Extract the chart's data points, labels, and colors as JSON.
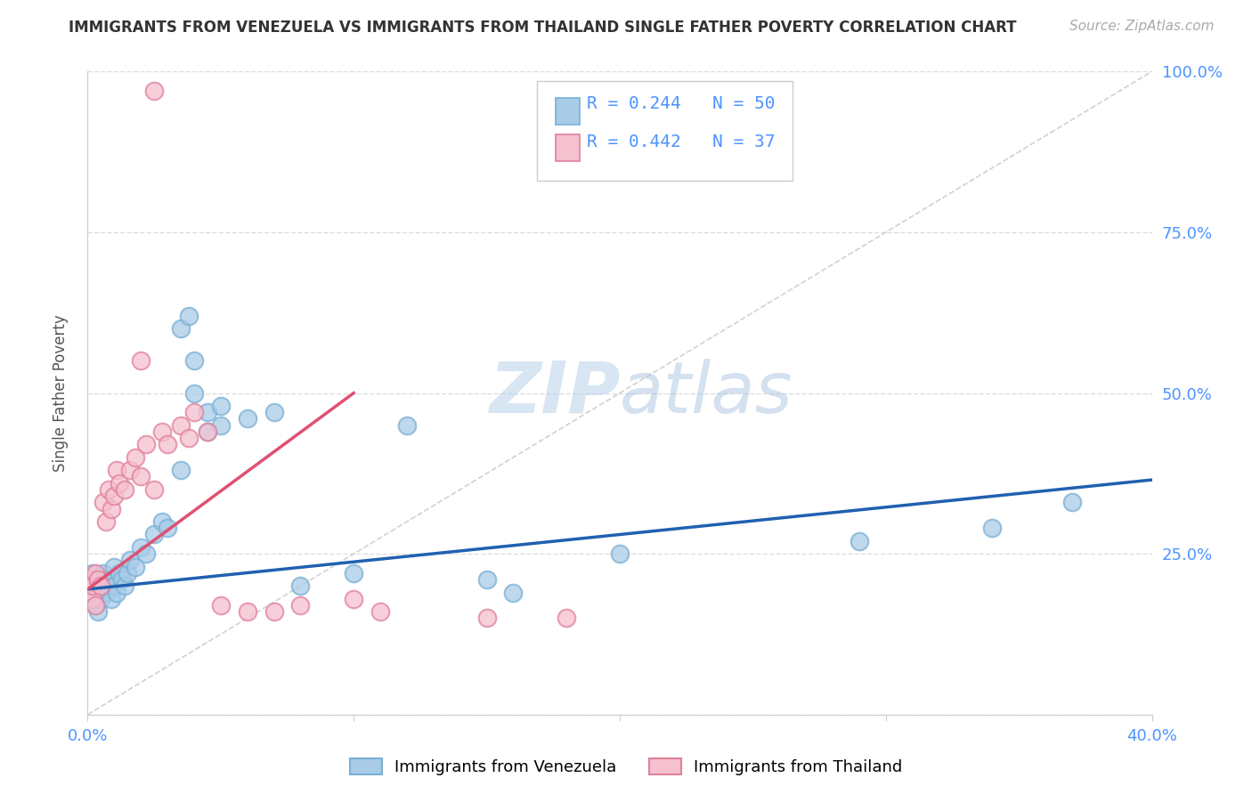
{
  "title": "IMMIGRANTS FROM VENEZUELA VS IMMIGRANTS FROM THAILAND SINGLE FATHER POVERTY CORRELATION CHART",
  "source": "Source: ZipAtlas.com",
  "ylabel": "Single Father Poverty",
  "legend_r_blue": "R = 0.244",
  "legend_n_blue": "N = 50",
  "legend_r_pink": "R = 0.442",
  "legend_n_pink": "N = 37",
  "blue_face": "#a8cce8",
  "blue_edge": "#7aafd4",
  "pink_face": "#f5c0d0",
  "pink_edge": "#e0809a",
  "blue_line": "#2060b0",
  "pink_line": "#e05070",
  "ref_line": "#cccccc",
  "grid_color": "#dddddd",
  "axis_tick_color": "#4d94ff",
  "watermark_zip": "#c8ddf0",
  "watermark_atlas": "#a8c8e8",
  "xlim": [
    0.0,
    0.4
  ],
  "ylim": [
    0.0,
    1.0
  ],
  "ven_x": [
    0.001,
    0.001,
    0.002,
    0.002,
    0.002,
    0.003,
    0.003,
    0.004,
    0.004,
    0.005,
    0.005,
    0.006,
    0.006,
    0.007,
    0.008,
    0.009,
    0.01,
    0.01,
    0.011,
    0.012,
    0.013,
    0.014,
    0.015,
    0.016,
    0.018,
    0.02,
    0.022,
    0.025,
    0.028,
    0.03,
    0.035,
    0.038,
    0.04,
    0.045,
    0.05,
    0.06,
    0.07,
    0.08,
    0.1,
    0.12,
    0.035,
    0.04,
    0.045,
    0.05,
    0.15,
    0.16,
    0.2,
    0.29,
    0.34,
    0.37
  ],
  "ven_y": [
    0.19,
    0.21,
    0.18,
    0.2,
    0.22,
    0.17,
    0.19,
    0.2,
    0.16,
    0.18,
    0.21,
    0.2,
    0.22,
    0.19,
    0.21,
    0.18,
    0.2,
    0.23,
    0.19,
    0.22,
    0.21,
    0.2,
    0.22,
    0.24,
    0.23,
    0.26,
    0.25,
    0.28,
    0.3,
    0.29,
    0.6,
    0.62,
    0.55,
    0.47,
    0.48,
    0.46,
    0.47,
    0.2,
    0.22,
    0.45,
    0.38,
    0.5,
    0.44,
    0.45,
    0.21,
    0.19,
    0.25,
    0.27,
    0.29,
    0.33
  ],
  "thai_x": [
    0.001,
    0.001,
    0.002,
    0.002,
    0.003,
    0.003,
    0.004,
    0.005,
    0.006,
    0.007,
    0.008,
    0.009,
    0.01,
    0.011,
    0.012,
    0.014,
    0.016,
    0.018,
    0.02,
    0.022,
    0.025,
    0.028,
    0.03,
    0.035,
    0.038,
    0.04,
    0.045,
    0.05,
    0.06,
    0.07,
    0.08,
    0.1,
    0.11,
    0.15,
    0.18,
    0.02,
    0.025
  ],
  "thai_y": [
    0.19,
    0.21,
    0.18,
    0.2,
    0.17,
    0.22,
    0.21,
    0.2,
    0.33,
    0.3,
    0.35,
    0.32,
    0.34,
    0.38,
    0.36,
    0.35,
    0.38,
    0.4,
    0.37,
    0.42,
    0.35,
    0.44,
    0.42,
    0.45,
    0.43,
    0.47,
    0.44,
    0.17,
    0.16,
    0.16,
    0.17,
    0.18,
    0.16,
    0.15,
    0.15,
    0.55,
    0.97
  ],
  "ven_trend_x0": 0.0,
  "ven_trend_y0": 0.195,
  "ven_trend_x1": 0.4,
  "ven_trend_y1": 0.365,
  "thai_trend_x0": 0.0,
  "thai_trend_y0": 0.195,
  "thai_trend_x1": 0.1,
  "thai_trend_y1": 0.5
}
